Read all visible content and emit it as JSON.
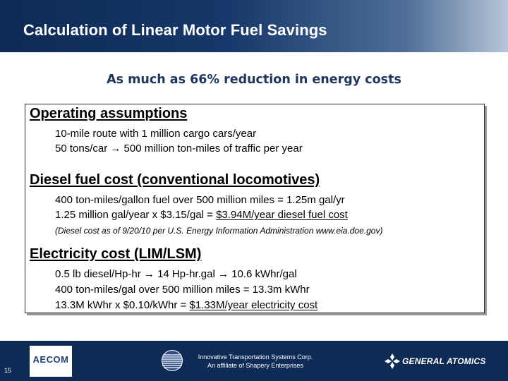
{
  "slide": {
    "title": "Calculation of Linear Motor Fuel Savings",
    "subtitle": "As much as 66% reduction in energy costs"
  },
  "sections": [
    {
      "heading": "Operating assumptions",
      "lines": [
        "10-mile route with 1 million cargo cars/year",
        "50 tons/car → 500 million ton-miles of traffic per year"
      ]
    },
    {
      "heading": "Diesel fuel cost (conventional locomotives)",
      "lines": [
        "400 ton-miles/gallon fuel over 500 million miles = 1.25m gal/yr"
      ],
      "result_prefix": "1.25 million gal/year x $3.15/gal = ",
      "result_value": "$3.94M/year diesel fuel cost",
      "note": "(Diesel cost as of 9/20/10 per U.S. Energy Information Administration www.eia.doe.gov)"
    },
    {
      "heading": "Electricity cost (LIM/LSM)",
      "lines": [
        "0.5 lb diesel/Hp-hr → 14 Hp-hr.gal → 10.6 kWhr/gal",
        "400 ton-miles/gal over 500 million miles = 13.3m kWhr"
      ],
      "result_prefix": "13.3M kWhr x $0.10/kWhr = ",
      "result_value": "$1.33M/year electricity cost"
    }
  ],
  "footer": {
    "page_number": "15",
    "left_logo": "AECOM",
    "center_line1": "Innovative Transportation Systems Corp.",
    "center_line2": "An affiliate of Shapery Enterprises",
    "right_logo": "GENERAL ATOMICS",
    "icons": [
      "aecom-logo",
      "globe-logo",
      "general-atomics-logo"
    ],
    "background": "#0e2b55"
  },
  "colors": {
    "header_dark": "#0d2a54",
    "subtitle": "#1e3560"
  }
}
